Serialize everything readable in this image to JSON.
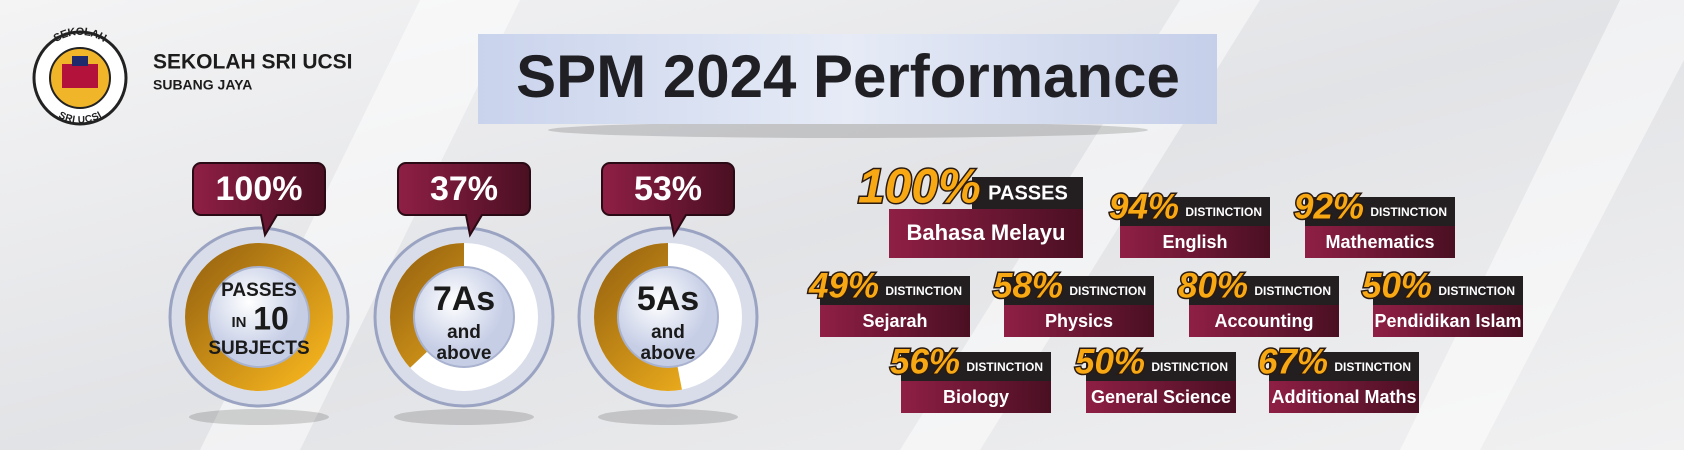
{
  "header": {
    "school": "SEKOLAH SRI UCSI",
    "location": "SUBANG JAYA",
    "logo_top": "SEKOLAH",
    "logo_bottom": "SRI UCSI",
    "title": "SPM 2024 Performance"
  },
  "gauges": [
    {
      "value": 100,
      "label": "100%",
      "caption": [
        "PASSES",
        "IN",
        "10",
        "SUBJECTS"
      ]
    },
    {
      "value": 37,
      "label": "37%",
      "caption": [
        "7As",
        "and",
        "above"
      ]
    },
    {
      "value": 53,
      "label": "53%",
      "caption": [
        "5As",
        "and",
        "above"
      ]
    }
  ],
  "subjects": [
    {
      "percent": "100%",
      "kind": "PASSES",
      "name": "Bahasa Melayu"
    },
    {
      "percent": "94%",
      "kind": "DISTINCTION",
      "name": "English"
    },
    {
      "percent": "92%",
      "kind": "DISTINCTION",
      "name": "Mathematics"
    },
    {
      "percent": "49%",
      "kind": "DISTINCTION",
      "name": "Sejarah"
    },
    {
      "percent": "58%",
      "kind": "DISTINCTION",
      "name": "Physics"
    },
    {
      "percent": "80%",
      "kind": "DISTINCTION",
      "name": "Accounting"
    },
    {
      "percent": "50%",
      "kind": "DISTINCTION",
      "name": "Pendidikan Islam"
    },
    {
      "percent": "56%",
      "kind": "DISTINCTION",
      "name": "Biology"
    },
    {
      "percent": "50%",
      "kind": "DISTINCTION",
      "name": "General Science"
    },
    {
      "percent": "67%",
      "kind": "DISTINCTION",
      "name": "Additional Maths"
    }
  ]
}
